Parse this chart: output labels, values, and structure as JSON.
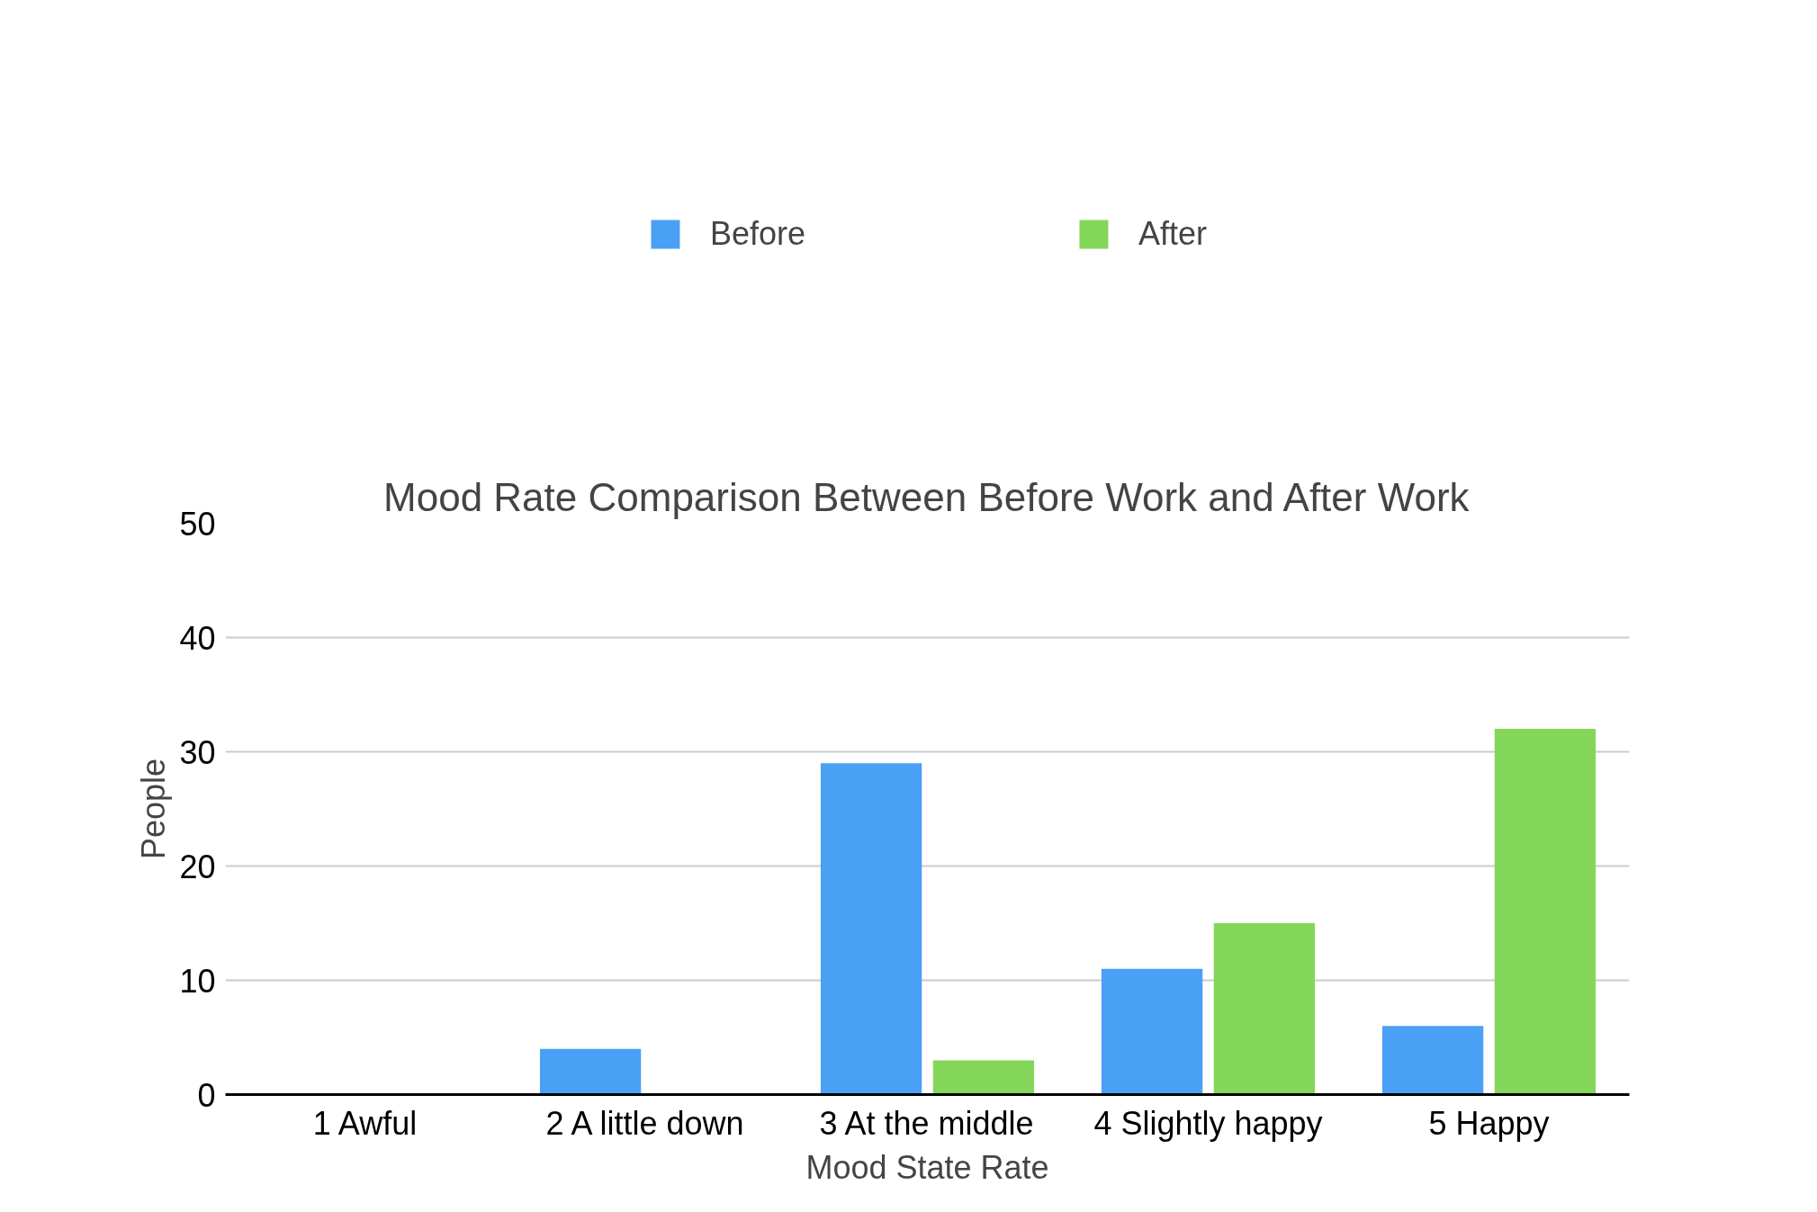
{
  "chart_data": {
    "type": "bar",
    "title": "Mood Rate Comparison Between Before Work and After Work",
    "xlabel": "Mood State Rate",
    "ylabel": "People",
    "categories": [
      "1 Awful",
      "2 A little down",
      "3 At the middle",
      "4 Slightly happy",
      "5 Happy"
    ],
    "series": [
      {
        "name": "Before",
        "color": "#4aa0f5",
        "values": [
          0,
          4,
          29,
          11,
          6
        ]
      },
      {
        "name": "After",
        "color": "#84d65a",
        "values": [
          0,
          0,
          3,
          15,
          32
        ]
      }
    ],
    "ylim": [
      0,
      50
    ],
    "yticks": [
      0,
      10,
      20,
      30,
      40,
      50
    ],
    "grid": "y",
    "legend": "top"
  }
}
